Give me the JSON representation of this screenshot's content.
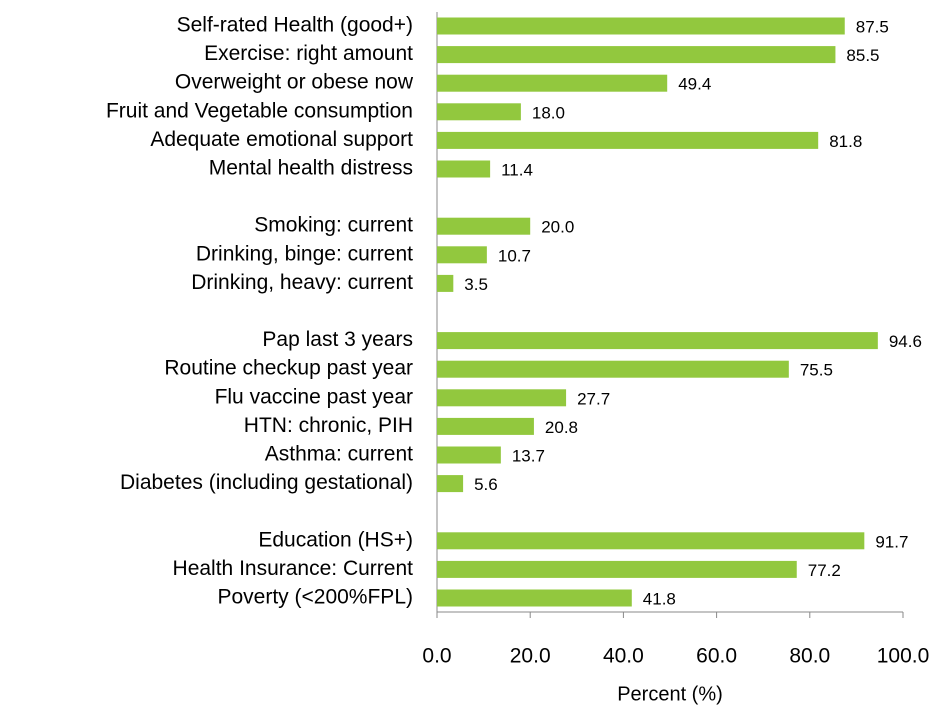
{
  "chart_data": {
    "type": "bar",
    "orientation": "horizontal",
    "color": "#92c83e",
    "xlabel": "Percent (%)",
    "categories": [
      "Self-rated Health (good+)",
      "Exercise: right amount",
      "Overweight or obese now",
      "Fruit and Vegetable consumption",
      "Adequate emotional support",
      "Mental health distress",
      null,
      "Smoking: current",
      "Drinking, binge: current",
      "Drinking, heavy: current",
      null,
      "Pap last 3 years",
      "Routine checkup past year",
      "Flu vaccine past year",
      "HTN: chronic, PIH",
      "Asthma: current",
      "Diabetes (including gestational)",
      null,
      "Education (HS+)",
      "Health Insurance: Current",
      "Poverty (<200%FPL)"
    ],
    "values": [
      87.5,
      85.5,
      49.4,
      18.0,
      81.8,
      11.4,
      null,
      20.0,
      10.7,
      3.5,
      null,
      94.6,
      75.5,
      27.7,
      20.8,
      13.7,
      5.6,
      null,
      91.7,
      77.2,
      41.8
    ],
    "value_labels": [
      "87.5",
      "85.5",
      "49.4",
      "18.0",
      "81.8",
      "11.4",
      null,
      "20.0",
      "10.7",
      "3.5",
      null,
      "94.6",
      "75.5",
      "27.7",
      "20.8",
      "13.7",
      "5.6",
      null,
      "91.7",
      "77.2",
      "41.8"
    ],
    "xlim": [
      0,
      100
    ],
    "xticks": [
      {
        "value": 0,
        "label": "0.0"
      },
      {
        "value": 20,
        "label": "20.0"
      },
      {
        "value": 40,
        "label": "40.0"
      },
      {
        "value": 60,
        "label": "60.0"
      },
      {
        "value": 80,
        "label": "80.0"
      },
      {
        "value": 100,
        "label": "100.0"
      }
    ]
  }
}
